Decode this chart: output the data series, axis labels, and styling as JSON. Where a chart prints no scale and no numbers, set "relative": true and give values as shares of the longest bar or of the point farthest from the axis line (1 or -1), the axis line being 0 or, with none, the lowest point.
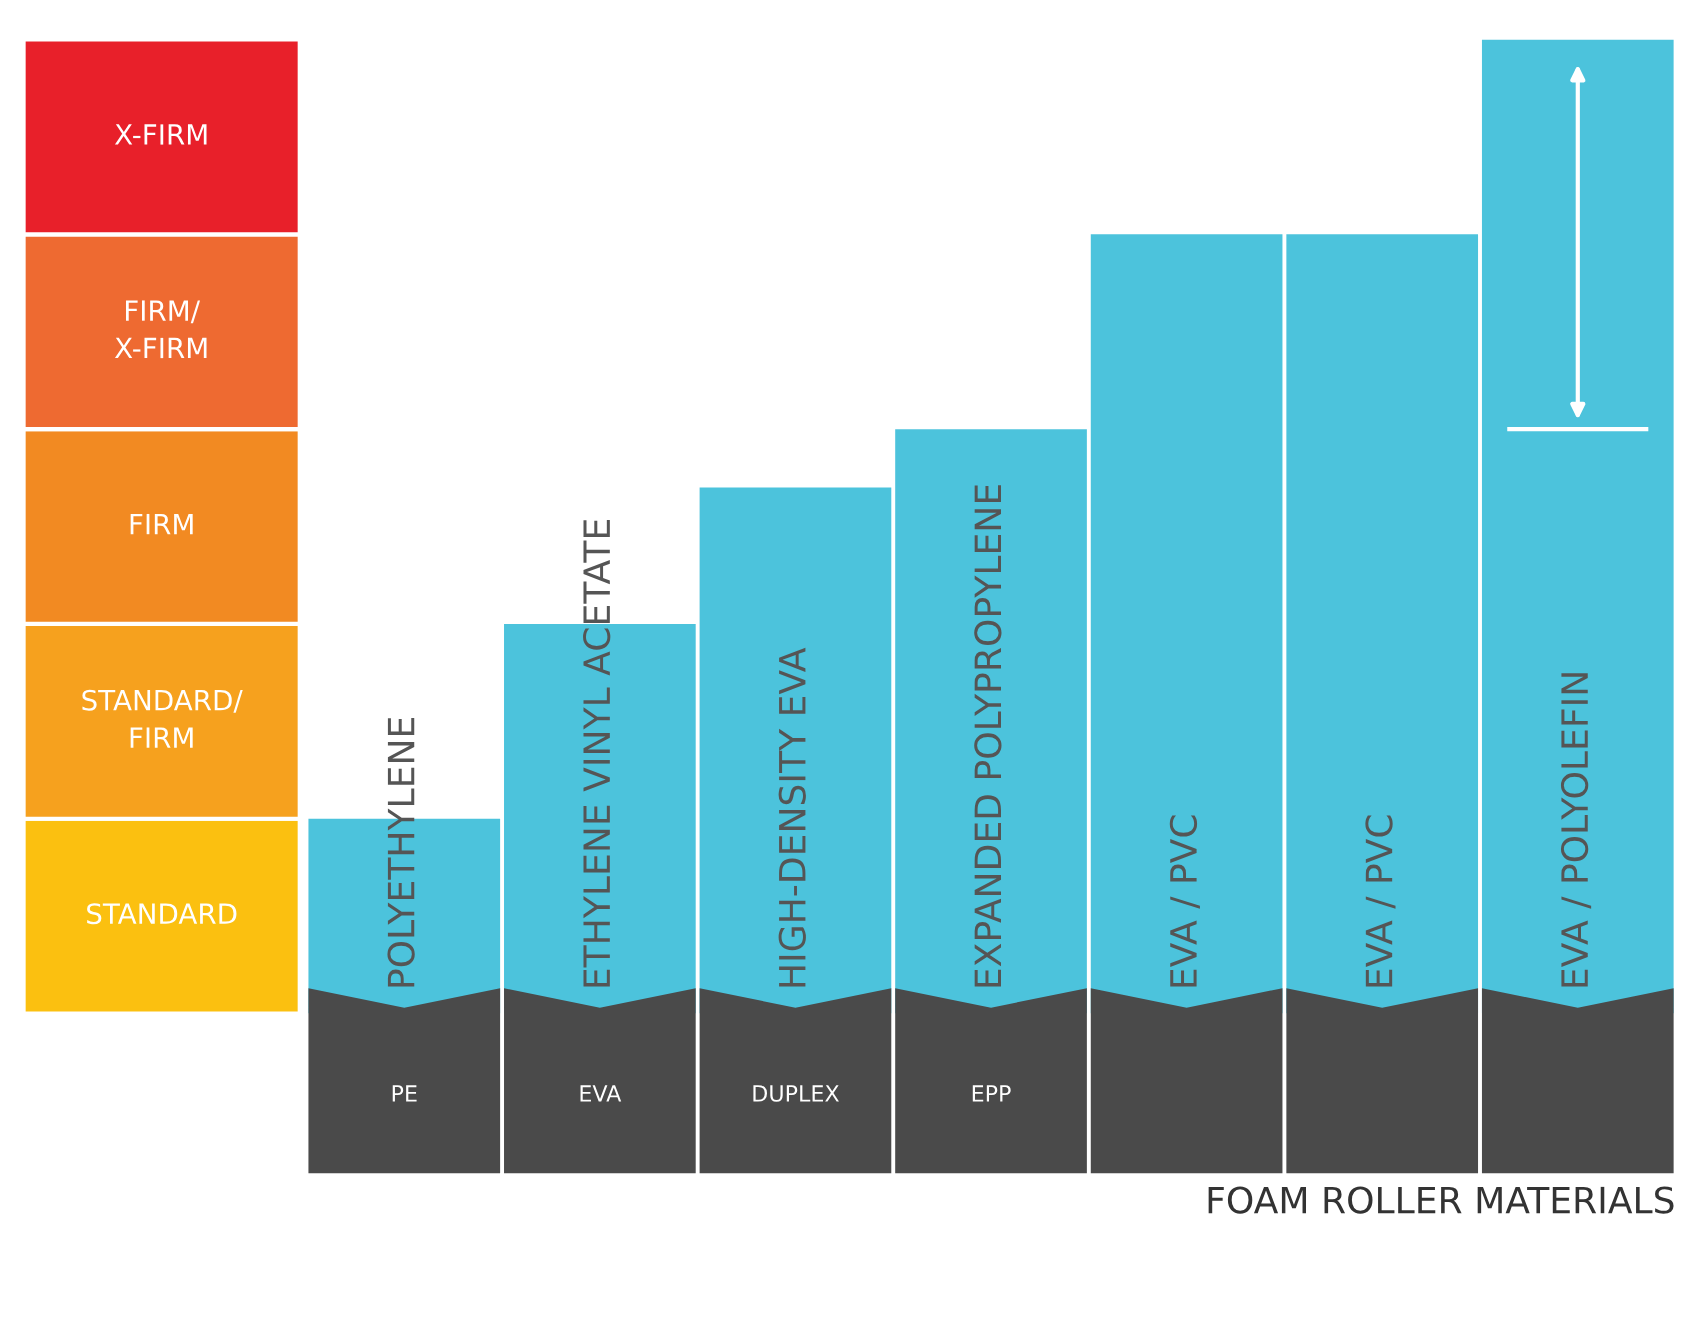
{
  "chart_data": {
    "type": "bar",
    "relative": true,
    "categories": [
      "PE",
      "EVA",
      "DUPLEX",
      "EPP",
      null,
      null,
      null
    ],
    "values": [
      0.2,
      0.4,
      0.54,
      0.6,
      0.8,
      0.8,
      1
    ],
    "color": "#4cc3dc",
    "xlabel": "FOAM ROLLER MATERIALS",
    "ref_lines": [
      {
        "axis": "y",
        "value": 0.6,
        "color": "#ffffff"
      }
    ],
    "annotations": [
      "POLYETHYLENE",
      "ETHYLENE VINYL ACETATE",
      "HIGH-DENSITY EVA",
      "EXPANDED POLYPROPYLENE",
      "EVA / PVC",
      "EVA / PVC",
      "EVA / POLYOLEFIN",
      "STANDARD",
      "STANDARD/\nFIRM",
      "FIRM",
      "FIRM/\nX-FIRM",
      "X-FIRM"
    ]
  }
}
